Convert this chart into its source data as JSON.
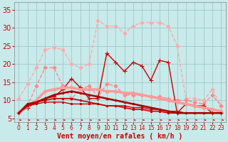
{
  "x": [
    0,
    1,
    2,
    3,
    4,
    5,
    6,
    7,
    8,
    9,
    10,
    11,
    12,
    13,
    14,
    15,
    16,
    17,
    18,
    19,
    20,
    21,
    22,
    23
  ],
  "lines": [
    {
      "y": [
        10.5,
        14.5,
        19.0,
        24.0,
        24.5,
        24.0,
        20.0,
        19.0,
        20.0,
        32.0,
        30.5,
        30.5,
        28.5,
        30.5,
        31.5,
        31.5,
        31.5,
        30.5,
        25.0,
        10.5,
        10.5,
        10.0,
        13.0,
        8.5
      ],
      "color": "#ffaaaa",
      "lw": 1.0,
      "marker": "D",
      "ms": 2.5,
      "ls": "--"
    },
    {
      "y": [
        6.5,
        8.5,
        14.0,
        19.0,
        19.0,
        14.0,
        10.5,
        13.0,
        14.0,
        11.0,
        14.5,
        14.0,
        11.5,
        11.5,
        11.5,
        11.0,
        11.0,
        10.5,
        10.0,
        10.0,
        9.5,
        9.0,
        11.5,
        8.5
      ],
      "color": "#ff8888",
      "lw": 1.0,
      "marker": "D",
      "ms": 2.5,
      "ls": "--"
    },
    {
      "y": [
        6.5,
        8.0,
        9.5,
        10.5,
        11.0,
        13.0,
        16.0,
        13.5,
        10.5,
        10.5,
        23.0,
        20.5,
        18.0,
        20.5,
        19.5,
        15.5,
        21.0,
        20.5,
        6.5,
        9.0,
        8.5,
        8.5,
        6.5,
        6.5
      ],
      "color": "#cc0000",
      "lw": 1.0,
      "marker": "+",
      "ms": 4.5,
      "ls": "-"
    },
    {
      "y": [
        6.5,
        8.5,
        10.0,
        12.5,
        13.0,
        13.5,
        13.5,
        13.0,
        13.0,
        13.0,
        12.5,
        12.5,
        12.0,
        12.0,
        11.5,
        11.0,
        10.5,
        10.0,
        9.5,
        9.0,
        8.5,
        8.0,
        7.5,
        7.0
      ],
      "color": "#ff9999",
      "lw": 2.5,
      "marker": "D",
      "ms": 2.5,
      "ls": "-"
    },
    {
      "y": [
        6.5,
        8.5,
        9.0,
        9.5,
        9.5,
        9.5,
        9.0,
        9.0,
        9.0,
        9.0,
        8.5,
        8.5,
        8.5,
        8.0,
        8.0,
        7.5,
        7.5,
        7.0,
        7.0,
        6.5,
        6.5,
        6.5,
        6.5,
        6.5
      ],
      "color": "#cc0000",
      "lw": 1.0,
      "marker": "s",
      "ms": 2.0,
      "ls": "-"
    },
    {
      "y": [
        6.5,
        8.5,
        9.5,
        10.0,
        10.5,
        10.5,
        10.5,
        10.0,
        9.5,
        9.0,
        8.5,
        8.5,
        8.0,
        7.5,
        7.5,
        7.0,
        7.0,
        6.5,
        6.5,
        6.5,
        6.5,
        6.5,
        6.5,
        6.5
      ],
      "color": "#cc0000",
      "lw": 1.2,
      "marker": "s",
      "ms": 2.0,
      "ls": "-"
    },
    {
      "y": [
        6.5,
        9.0,
        9.5,
        10.5,
        11.5,
        12.0,
        12.5,
        12.0,
        11.5,
        11.0,
        10.5,
        10.0,
        9.5,
        9.0,
        8.5,
        8.0,
        7.5,
        7.0,
        6.5,
        6.5,
        6.5,
        6.5,
        6.5,
        6.5
      ],
      "color": "#aa0000",
      "lw": 1.8,
      "marker": "s",
      "ms": 2.0,
      "ls": "-"
    }
  ],
  "xlabel": "Vent moyen/en rafales ( km/h )",
  "xlim": [
    -0.5,
    23.5
  ],
  "ylim": [
    4.0,
    37.0
  ],
  "yticks": [
    5,
    10,
    15,
    20,
    25,
    30,
    35
  ],
  "xticks": [
    0,
    1,
    2,
    3,
    4,
    5,
    6,
    7,
    8,
    9,
    10,
    11,
    12,
    13,
    14,
    15,
    16,
    17,
    18,
    19,
    20,
    21,
    22,
    23
  ],
  "bg_color": "#c8eaea",
  "grid_color": "#a0c8c8",
  "tick_color": "#cc0000",
  "label_color": "#cc0000",
  "xlabel_fontsize": 7.0,
  "ytick_fontsize": 7,
  "xtick_fontsize": 5.5
}
